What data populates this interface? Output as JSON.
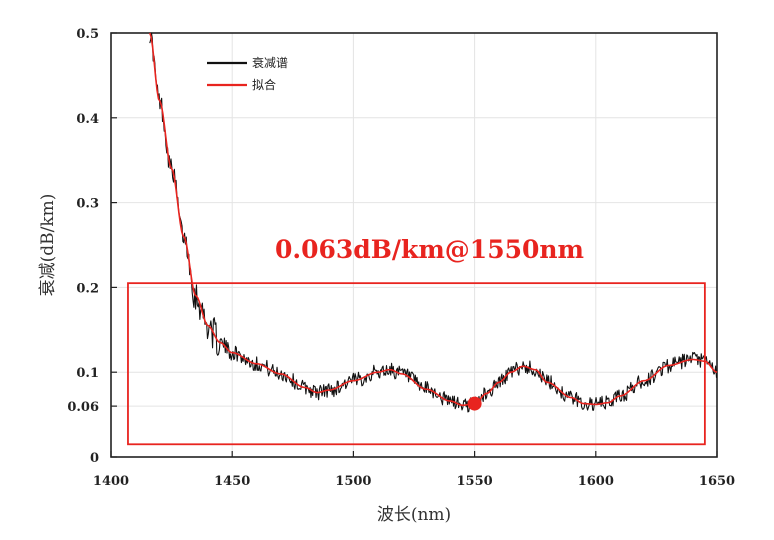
{
  "chart_data": {
    "type": "line",
    "title": "",
    "xlabel": "波长(nm)",
    "ylabel": "衰减(dB/km)",
    "xlim": [
      1400,
      1650
    ],
    "ylim": [
      0,
      0.5
    ],
    "x_ticks": [
      "1400",
      "1450",
      "1500",
      "1550",
      "1600",
      "1650"
    ],
    "y_ticks": [
      {
        "value": 0,
        "label": "0"
      },
      {
        "value": 0.06,
        "label": "0.06"
      },
      {
        "value": 0.1,
        "label": "0.1"
      },
      {
        "value": 0.2,
        "label": "0.2"
      },
      {
        "value": 0.3,
        "label": "0.3"
      },
      {
        "value": 0.4,
        "label": "0.4"
      },
      {
        "value": 0.5,
        "label": "0.5"
      }
    ],
    "grid": true,
    "legend_position": "top-left",
    "series": [
      {
        "name": "衰减谱",
        "color": "#111111",
        "style": "noisy measured spectrum",
        "points": [
          [
            1416,
            0.5
          ],
          [
            1420,
            0.42
          ],
          [
            1425,
            0.34
          ],
          [
            1430,
            0.26
          ],
          [
            1435,
            0.19
          ],
          [
            1440,
            0.155
          ],
          [
            1445,
            0.135
          ],
          [
            1450,
            0.123
          ],
          [
            1460,
            0.11
          ],
          [
            1470,
            0.098
          ],
          [
            1480,
            0.082
          ],
          [
            1485,
            0.076
          ],
          [
            1490,
            0.079
          ],
          [
            1500,
            0.09
          ],
          [
            1510,
            0.1
          ],
          [
            1515,
            0.103
          ],
          [
            1520,
            0.098
          ],
          [
            1530,
            0.08
          ],
          [
            1540,
            0.066
          ],
          [
            1545,
            0.061
          ],
          [
            1550,
            0.063
          ],
          [
            1555,
            0.075
          ],
          [
            1560,
            0.088
          ],
          [
            1565,
            0.1
          ],
          [
            1570,
            0.107
          ],
          [
            1575,
            0.103
          ],
          [
            1580,
            0.088
          ],
          [
            1590,
            0.07
          ],
          [
            1595,
            0.063
          ],
          [
            1600,
            0.062
          ],
          [
            1605,
            0.064
          ],
          [
            1610,
            0.072
          ],
          [
            1620,
            0.09
          ],
          [
            1630,
            0.108
          ],
          [
            1640,
            0.115
          ],
          [
            1645,
            0.113
          ],
          [
            1650,
            0.1
          ]
        ]
      },
      {
        "name": "拟合",
        "color": "#e8241f",
        "style": "smooth fit",
        "points": [
          [
            1416,
            0.5
          ],
          [
            1420,
            0.42
          ],
          [
            1425,
            0.34
          ],
          [
            1430,
            0.26
          ],
          [
            1435,
            0.19
          ],
          [
            1440,
            0.155
          ],
          [
            1445,
            0.135
          ],
          [
            1450,
            0.123
          ],
          [
            1460,
            0.11
          ],
          [
            1470,
            0.098
          ],
          [
            1480,
            0.082
          ],
          [
            1485,
            0.076
          ],
          [
            1490,
            0.079
          ],
          [
            1500,
            0.09
          ],
          [
            1510,
            0.1
          ],
          [
            1515,
            0.103
          ],
          [
            1520,
            0.098
          ],
          [
            1530,
            0.08
          ],
          [
            1540,
            0.066
          ],
          [
            1545,
            0.061
          ],
          [
            1550,
            0.063
          ],
          [
            1555,
            0.075
          ],
          [
            1560,
            0.088
          ],
          [
            1565,
            0.1
          ],
          [
            1570,
            0.107
          ],
          [
            1575,
            0.103
          ],
          [
            1580,
            0.088
          ],
          [
            1590,
            0.07
          ],
          [
            1595,
            0.063
          ],
          [
            1600,
            0.062
          ],
          [
            1605,
            0.064
          ],
          [
            1610,
            0.072
          ],
          [
            1620,
            0.09
          ],
          [
            1630,
            0.108
          ],
          [
            1640,
            0.115
          ],
          [
            1645,
            0.113
          ],
          [
            1650,
            0.1
          ]
        ]
      }
    ],
    "annotations": {
      "text": "0.063dB/km@1550nm",
      "color": "#e8241f",
      "marker": {
        "x": 1550,
        "y": 0.063,
        "color": "#e8241f"
      },
      "highlight_box": {
        "x_range": [
          1407,
          1645
        ],
        "y_range": [
          0.015,
          0.205
        ],
        "color": "#e8241f"
      }
    }
  }
}
